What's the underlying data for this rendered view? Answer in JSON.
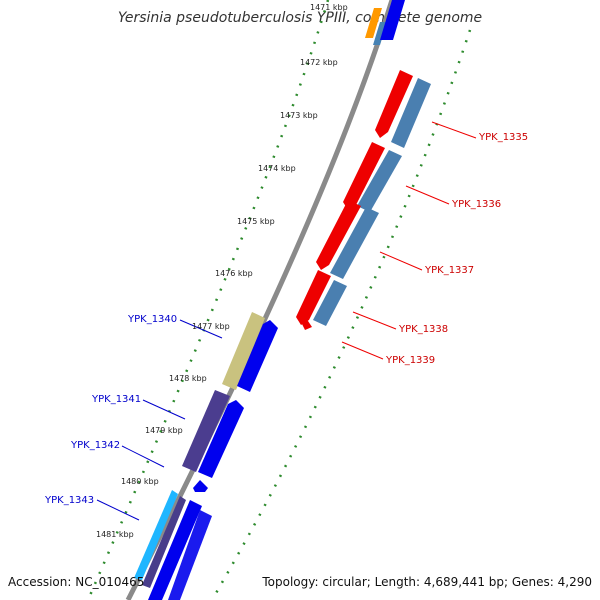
{
  "header": {
    "title": "Yersinia pseudotuberculosis YPIII, complete genome"
  },
  "footer": {
    "accession": "Accession: NC_010465",
    "summary": "Topology: circular; Length: 4,689,441 bp; Genes: 4,290"
  },
  "ruler": {
    "ticks": [
      "1471 kbp",
      "1472 kbp",
      "1473 kbp",
      "1474 kbp",
      "1475 kbp",
      "1476 kbp",
      "1477 kbp",
      "1478 kbp",
      "1479 kbp",
      "1480 kbp",
      "1481 kbp"
    ]
  },
  "genes": {
    "forward_labels": [
      "YPK_1335",
      "YPK_1336",
      "YPK_1337",
      "YPK_1338",
      "YPK_1339"
    ],
    "reverse_labels": [
      "YPK_1340",
      "YPK_1341",
      "YPK_1342",
      "YPK_1343"
    ]
  },
  "colors": {
    "forward_cds": "#ff0000",
    "forward_gene": "#4682b4",
    "reverse_cds": "#0000ff",
    "reverse_gene_1340": "#bdb76b",
    "reverse_gene_1341": "#483d8b",
    "reverse_gene_1343": "#00bfff",
    "backbone": "#888888",
    "tick_marks": "#228b22",
    "forward_label": "#cc0000",
    "reverse_label": "#0000cc"
  }
}
